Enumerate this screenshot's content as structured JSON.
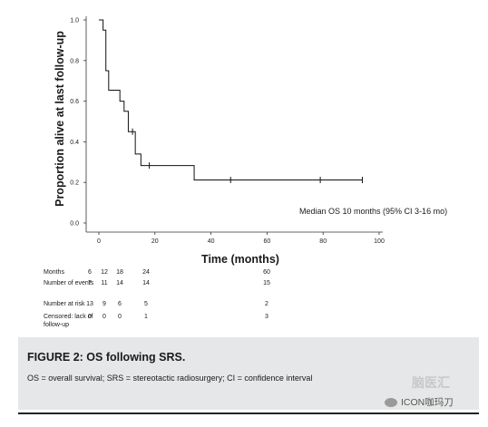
{
  "chart_data": {
    "type": "line",
    "title": "",
    "xlabel": "Time (months)",
    "ylabel": "Proportion alive at last follow-up",
    "xlim": [
      0,
      100
    ],
    "ylim": [
      0,
      1.0
    ],
    "x_ticks": [
      "0",
      "20",
      "40",
      "60",
      "80",
      "100"
    ],
    "y_ticks": [
      "0.0",
      "0.2",
      "0.4",
      "0.6",
      "0.8",
      "1.0"
    ],
    "grid": false,
    "series": [
      {
        "step_points": [
          [
            0,
            1.0
          ],
          [
            1.5,
            0.95
          ],
          [
            2.5,
            0.75
          ],
          [
            3.5,
            0.654
          ],
          [
            7.5,
            0.6
          ],
          [
            9,
            0.55
          ],
          [
            10.5,
            0.45
          ],
          [
            13,
            0.34
          ],
          [
            15,
            0.283
          ],
          [
            34,
            0.212
          ],
          [
            94,
            0.212
          ]
        ],
        "censored": [
          [
            12,
            0.45
          ],
          [
            18,
            0.283
          ],
          [
            47,
            0.212
          ],
          [
            79,
            0.212
          ],
          [
            94,
            0.212
          ]
        ]
      }
    ],
    "annotations": [
      "Median OS 10 months (95% CI 3-16 mo)"
    ]
  },
  "risk_table": {
    "rows": [
      {
        "label": "Months",
        "values": [
          "6",
          "12",
          "18",
          "24",
          "60"
        ]
      },
      {
        "label": "Number of events",
        "values": [
          "7",
          "11",
          "14",
          "14",
          "15"
        ]
      },
      {
        "label": "Number at risk",
        "values": [
          "13",
          "9",
          "6",
          "5",
          "2"
        ]
      },
      {
        "label": "Censored: lack of",
        "label2": "follow-up",
        "values": [
          "0",
          "0",
          "0",
          "1",
          "3"
        ]
      }
    ]
  },
  "caption": {
    "title": "FIGURE 2: OS following SRS.",
    "body": "OS = overall survival; SRS = stereotactic radiosurgery; CI = confidence interval"
  },
  "watermark": "脑医汇",
  "footer": {
    "source": "ICON咖玛刀",
    "icon": "wechat-icon"
  }
}
